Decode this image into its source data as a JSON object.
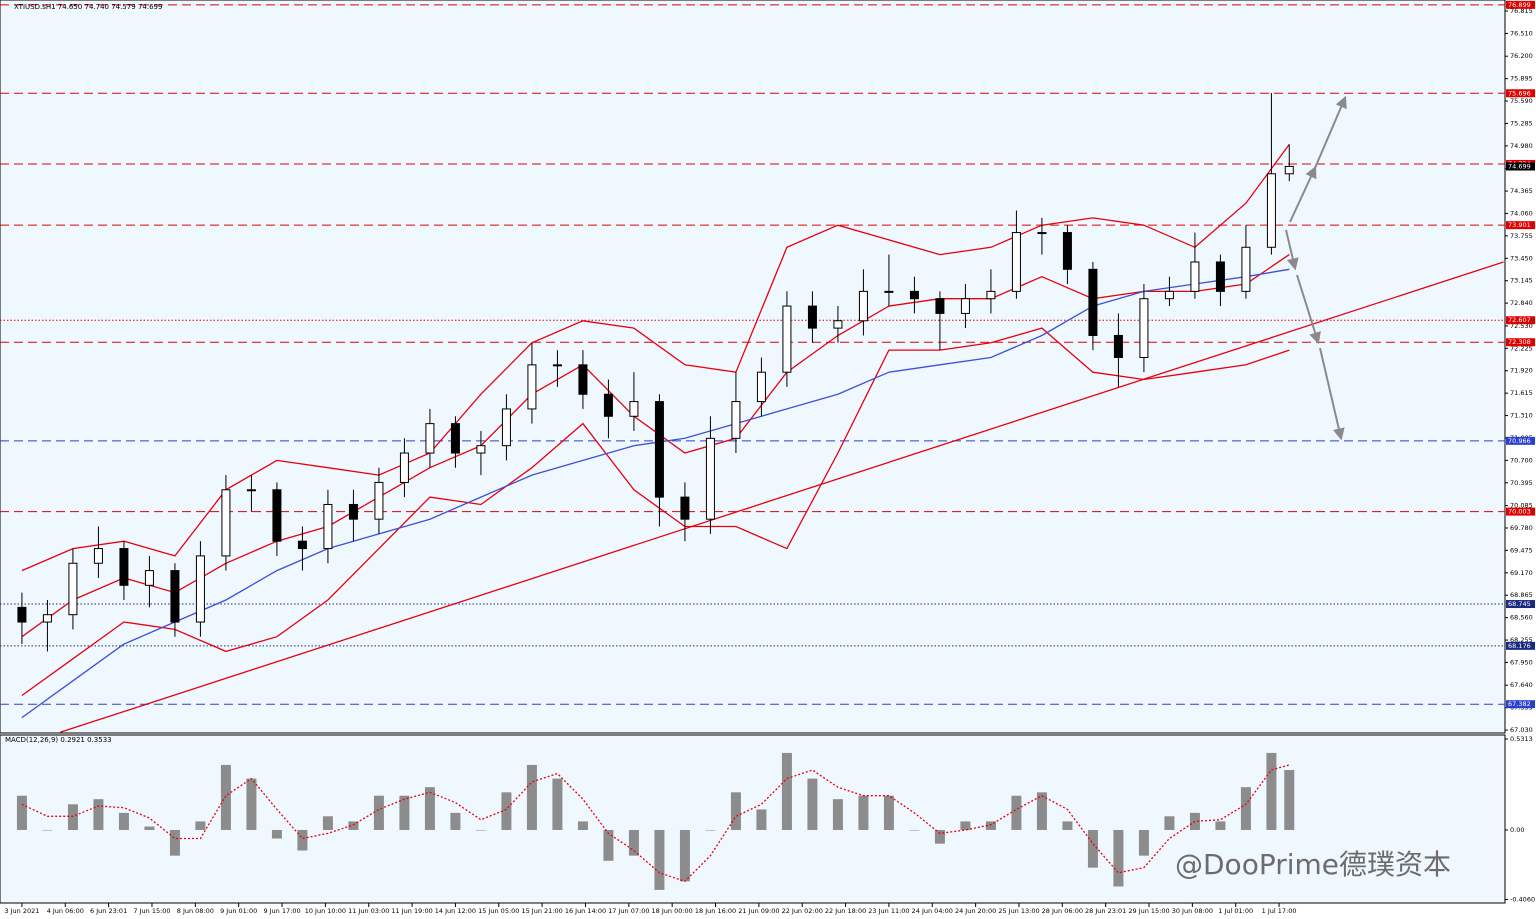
{
  "chart_data": [
    {
      "type": "candlestick",
      "title": "XTIUSD.sH1  74.650 74.740 74.579 74.699",
      "x": [
        0,
        10,
        20,
        30,
        40,
        50,
        60,
        70,
        80,
        90,
        100,
        110,
        120,
        130,
        140,
        150,
        160,
        170,
        180,
        190,
        200,
        210,
        220,
        230,
        240,
        250,
        260,
        270,
        280,
        290,
        300,
        310,
        320,
        330,
        340,
        350,
        360,
        370,
        380,
        390,
        400,
        410,
        420,
        430,
        440,
        450,
        460,
        470,
        480,
        490,
        497
      ],
      "open": [
        68.7,
        68.5,
        68.6,
        69.3,
        69.5,
        69.0,
        69.2,
        68.5,
        69.4,
        70.3,
        70.3,
        69.6,
        69.5,
        70.1,
        69.9,
        70.4,
        70.8,
        71.2,
        70.8,
        70.9,
        71.4,
        72.0,
        72.0,
        71.6,
        71.3,
        71.5,
        70.2,
        69.9,
        71.0,
        71.5,
        71.9,
        72.8,
        72.5,
        72.6,
        73.0,
        73.0,
        72.9,
        72.7,
        72.9,
        73.0,
        73.8,
        73.8,
        73.3,
        72.4,
        72.1,
        72.9,
        73.0,
        73.4,
        73.0,
        73.6,
        74.6
      ],
      "high": [
        68.9,
        68.8,
        69.5,
        69.8,
        69.6,
        69.4,
        69.3,
        69.6,
        70.5,
        70.5,
        70.4,
        69.8,
        70.3,
        70.3,
        70.6,
        71.0,
        71.4,
        71.3,
        71.1,
        71.6,
        72.3,
        72.2,
        72.2,
        71.8,
        71.9,
        71.6,
        70.4,
        71.3,
        71.9,
        72.1,
        73.0,
        73.0,
        72.8,
        73.3,
        73.5,
        73.2,
        73.0,
        73.1,
        73.3,
        74.1,
        74.0,
        73.9,
        73.4,
        72.7,
        73.1,
        73.2,
        73.8,
        73.5,
        73.9,
        75.7,
        75.0
      ],
      "low": [
        68.2,
        68.1,
        68.4,
        69.1,
        68.8,
        68.7,
        68.3,
        68.3,
        69.2,
        70.0,
        69.4,
        69.2,
        69.3,
        69.6,
        69.7,
        70.2,
        70.6,
        70.6,
        70.5,
        70.7,
        71.2,
        71.7,
        71.4,
        71.0,
        71.1,
        69.8,
        69.6,
        69.7,
        70.8,
        71.3,
        71.7,
        72.3,
        72.3,
        72.4,
        72.8,
        72.7,
        72.2,
        72.5,
        72.7,
        72.9,
        73.5,
        73.1,
        72.2,
        71.7,
        71.9,
        72.8,
        72.9,
        72.8,
        72.9,
        73.5,
        74.5
      ],
      "close": [
        68.5,
        68.6,
        69.3,
        69.5,
        69.0,
        69.2,
        68.5,
        69.4,
        70.3,
        70.3,
        69.6,
        69.5,
        70.1,
        69.9,
        70.4,
        70.8,
        71.2,
        70.8,
        70.9,
        71.4,
        72.0,
        72.0,
        71.6,
        71.3,
        71.5,
        70.2,
        69.9,
        71.0,
        71.5,
        71.9,
        72.8,
        72.5,
        72.6,
        73.0,
        73.0,
        72.9,
        72.7,
        72.9,
        73.0,
        73.8,
        73.8,
        73.3,
        72.4,
        72.1,
        72.9,
        73.0,
        73.4,
        73.0,
        73.6,
        74.6,
        74.7
      ],
      "up_color": "#ffffff",
      "down_color": "#000000",
      "lines": [
        {
          "color": "#e8000b",
          "x": [
            0,
            20,
            40,
            60,
            80,
            100,
            120,
            140,
            160,
            180,
            200,
            220,
            240,
            260,
            280,
            300,
            320,
            340,
            360,
            380,
            400,
            420,
            440,
            460,
            480,
            497
          ],
          "values": [
            69.2,
            69.5,
            69.6,
            69.4,
            70.3,
            70.7,
            70.6,
            70.5,
            70.8,
            71.6,
            72.3,
            72.6,
            72.5,
            72.0,
            71.9,
            73.6,
            73.9,
            73.7,
            73.5,
            73.6,
            73.9,
            74.0,
            73.9,
            73.6,
            74.2,
            75.0
          ]
        },
        {
          "color": "#e8000b",
          "x": [
            0,
            20,
            40,
            60,
            80,
            100,
            120,
            140,
            160,
            180,
            200,
            220,
            240,
            260,
            280,
            300,
            320,
            340,
            360,
            380,
            400,
            420,
            440,
            460,
            480,
            497
          ],
          "values": [
            68.3,
            68.8,
            69.1,
            68.9,
            69.3,
            69.6,
            69.8,
            70.2,
            70.6,
            70.9,
            71.6,
            72.0,
            71.3,
            70.8,
            71.0,
            71.9,
            72.4,
            72.8,
            72.9,
            72.9,
            73.2,
            72.9,
            73.0,
            73.0,
            73.1,
            73.5
          ]
        },
        {
          "color": "#e8000b",
          "x": [
            0,
            20,
            40,
            60,
            80,
            100,
            120,
            140,
            160,
            180,
            200,
            220,
            240,
            260,
            280,
            300,
            320,
            340,
            360,
            380,
            400,
            420,
            440,
            460,
            480,
            497
          ],
          "values": [
            67.5,
            68.0,
            68.5,
            68.4,
            68.1,
            68.3,
            68.8,
            69.5,
            70.2,
            70.1,
            70.6,
            71.2,
            70.3,
            69.8,
            69.8,
            69.5,
            70.8,
            72.2,
            72.2,
            72.3,
            72.5,
            71.9,
            71.8,
            71.9,
            72.0,
            72.2
          ]
        },
        {
          "color": "#3c50d8",
          "x": [
            0,
            20,
            40,
            60,
            80,
            100,
            120,
            140,
            160,
            180,
            200,
            220,
            240,
            260,
            280,
            300,
            320,
            340,
            360,
            380,
            400,
            420,
            440,
            460,
            480,
            497
          ],
          "values": [
            67.2,
            67.7,
            68.2,
            68.5,
            68.8,
            69.2,
            69.5,
            69.7,
            69.9,
            70.2,
            70.5,
            70.7,
            70.9,
            71.0,
            71.2,
            71.4,
            71.6,
            71.9,
            72.0,
            72.1,
            72.4,
            72.8,
            73.0,
            73.1,
            73.2,
            73.3
          ]
        },
        {
          "color": "#e8000b",
          "x": [
            15,
            581
          ],
          "values": [
            67.0,
            73.4
          ]
        }
      ],
      "levels": [
        {
          "value": 76.899,
          "color": "#e00000",
          "style": "dashed"
        },
        {
          "value": 75.696,
          "color": "#e00000",
          "style": "dashed"
        },
        {
          "value": 74.734,
          "color": "#e00000",
          "style": "dashed"
        },
        {
          "value": 73.901,
          "color": "#e00000",
          "style": "dashed"
        },
        {
          "value": 72.607,
          "color": "#e00000",
          "style": "dotted"
        },
        {
          "value": 72.308,
          "color": "#e00000",
          "style": "dashed"
        },
        {
          "value": 70.966,
          "color": "#2a3fd0",
          "style": "dashed"
        },
        {
          "value": 70.003,
          "color": "#e00000",
          "style": "dashed"
        },
        {
          "value": 68.745,
          "color": "#1a2a80",
          "style": "dotted"
        },
        {
          "value": 68.176,
          "color": "#1a2a80",
          "style": "dotted"
        },
        {
          "value": 67.382,
          "color": "#2a3fd0",
          "style": "dashed"
        }
      ],
      "last_price": 74.699,
      "xlim": [
        -8.6,
        581.6
      ],
      "ylim": [
        66.99,
        76.965
      ],
      "yticks": [
        76.815,
        {
          "value": 76.51,
          "label": "76.510"
        },
        {
          "value": 76.2,
          "label": "76.200"
        },
        75.895,
        {
          "value": 75.59,
          "label": "75.590"
        },
        75.285,
        {
          "value": 74.98,
          "label": "74.980"
        },
        {
          "value": 74.67,
          "label": "74.670"
        },
        74.365,
        {
          "value": 74.06,
          "label": "74.060"
        },
        73.755,
        {
          "value": 73.45,
          "label": "73.450"
        },
        73.145,
        {
          "value": 72.84,
          "label": "72.840"
        },
        {
          "value": 72.53,
          "label": "72.530"
        },
        72.225,
        {
          "value": 71.92,
          "label": "71.920"
        },
        71.615,
        {
          "value": 71.31,
          "label": "71.310"
        },
        71.005,
        {
          "value": 70.7,
          "label": "70.700"
        },
        70.395,
        70.085,
        {
          "value": 69.78,
          "label": "69.780"
        },
        69.475,
        {
          "value": 69.17,
          "label": "69.170"
        },
        68.865,
        {
          "value": 68.56,
          "label": "68.560"
        },
        68.255,
        {
          "value": 67.95,
          "label": "67.950"
        },
        {
          "value": 67.64,
          "label": "67.640"
        },
        67.335,
        {
          "value": 67.03,
          "label": "67.030"
        }
      ]
    },
    {
      "type": "macd",
      "title": "MACD(12,26,9) 0.2921 0.3533",
      "x": [
        0,
        10,
        20,
        30,
        40,
        50,
        60,
        70,
        80,
        90,
        100,
        110,
        120,
        130,
        140,
        150,
        160,
        170,
        180,
        190,
        200,
        210,
        220,
        230,
        240,
        250,
        260,
        270,
        280,
        290,
        300,
        310,
        320,
        330,
        340,
        350,
        360,
        370,
        380,
        390,
        400,
        410,
        420,
        430,
        440,
        450,
        460,
        470,
        480,
        490,
        497
      ],
      "histogram": {
        "color": "#8c8c8c",
        "values": [
          0.2,
          0.0,
          0.15,
          0.18,
          0.1,
          0.02,
          -0.15,
          0.05,
          0.38,
          0.3,
          -0.05,
          -0.12,
          0.08,
          0.05,
          0.2,
          0.2,
          0.25,
          0.1,
          0.0,
          0.22,
          0.38,
          0.3,
          0.05,
          -0.18,
          -0.15,
          -0.35,
          -0.3,
          0.0,
          0.22,
          0.12,
          0.45,
          0.3,
          0.18,
          0.2,
          0.2,
          0.0,
          -0.08,
          0.05,
          0.05,
          0.2,
          0.22,
          0.05,
          -0.22,
          -0.33,
          -0.15,
          0.08,
          0.1,
          0.05,
          0.25,
          0.45,
          0.35
        ]
      },
      "signal": {
        "color": "#e8000b",
        "values": [
          0.15,
          0.08,
          0.08,
          0.14,
          0.13,
          0.07,
          -0.05,
          -0.05,
          0.2,
          0.3,
          0.12,
          -0.05,
          -0.02,
          0.03,
          0.12,
          0.18,
          0.22,
          0.16,
          0.06,
          0.12,
          0.28,
          0.33,
          0.18,
          -0.02,
          -0.12,
          -0.25,
          -0.3,
          -0.15,
          0.08,
          0.15,
          0.3,
          0.35,
          0.25,
          0.2,
          0.2,
          0.1,
          -0.02,
          0.0,
          0.03,
          0.12,
          0.2,
          0.12,
          -0.08,
          -0.25,
          -0.22,
          -0.05,
          0.05,
          0.06,
          0.15,
          0.35,
          0.38
        ]
      },
      "xlim": [
        -8.6,
        581.6
      ],
      "ylim": [
        -0.4265,
        0.5547
      ],
      "yticks": [
        0.5313,
        {
          "value": 0,
          "label": "0.00"
        },
        {
          "value": -0.406,
          "label": "-0.4060"
        }
      ],
      "xticks": [
        {
          "value": 0,
          "label": "3 Jun 2021"
        },
        {
          "value": 17,
          "label": "4 Jun 06:00"
        },
        {
          "value": 34,
          "label": "6 Jun 23:01"
        },
        {
          "value": 51,
          "label": "7 Jun 15:00"
        },
        {
          "value": 68,
          "label": "8 Jun 08:00"
        },
        {
          "value": 85,
          "label": "9 Jun 01:00"
        },
        {
          "value": 102,
          "label": "9 Jun 17:00"
        },
        {
          "value": 119,
          "label": "10 Jun 10:00"
        },
        {
          "value": 136,
          "label": "11 Jun 03:00"
        },
        {
          "value": 153,
          "label": "11 Jun 19:00"
        },
        {
          "value": 170,
          "label": "14 Jun 12:00"
        },
        {
          "value": 187,
          "label": "15 Jun 05:00"
        },
        {
          "value": 204,
          "label": "15 Jun 21:00"
        },
        {
          "value": 221,
          "label": "16 Jun 14:00"
        },
        {
          "value": 238,
          "label": "17 Jun 07:00"
        },
        {
          "value": 255,
          "label": "18 Jun 00:00"
        },
        {
          "value": 272,
          "label": "18 Jun 16:00"
        },
        {
          "value": 289,
          "label": "21 Jun 09:00"
        },
        {
          "value": 306,
          "label": "22 Jun 02:00"
        },
        {
          "value": 323,
          "label": "22 Jun 18:00"
        },
        {
          "value": 340,
          "label": "23 Jun 11:00"
        },
        {
          "value": 357,
          "label": "24 Jun 04:00"
        },
        {
          "value": 374,
          "label": "24 Jun 20:00"
        },
        {
          "value": 391,
          "label": "25 Jun 13:00"
        },
        {
          "value": 408,
          "label": "28 Jun 06:00"
        },
        {
          "value": 425,
          "label": "28 Jun 23:01"
        },
        {
          "value": 442,
          "label": "29 Jun 15:00"
        },
        {
          "value": 459,
          "label": "30 Jun 08:00"
        },
        {
          "value": 476,
          "label": "1 Jul 01:00"
        },
        {
          "value": 493,
          "label": "1 Jul 17:00"
        }
      ]
    }
  ],
  "watermark": "@DooPrime德璞资本"
}
